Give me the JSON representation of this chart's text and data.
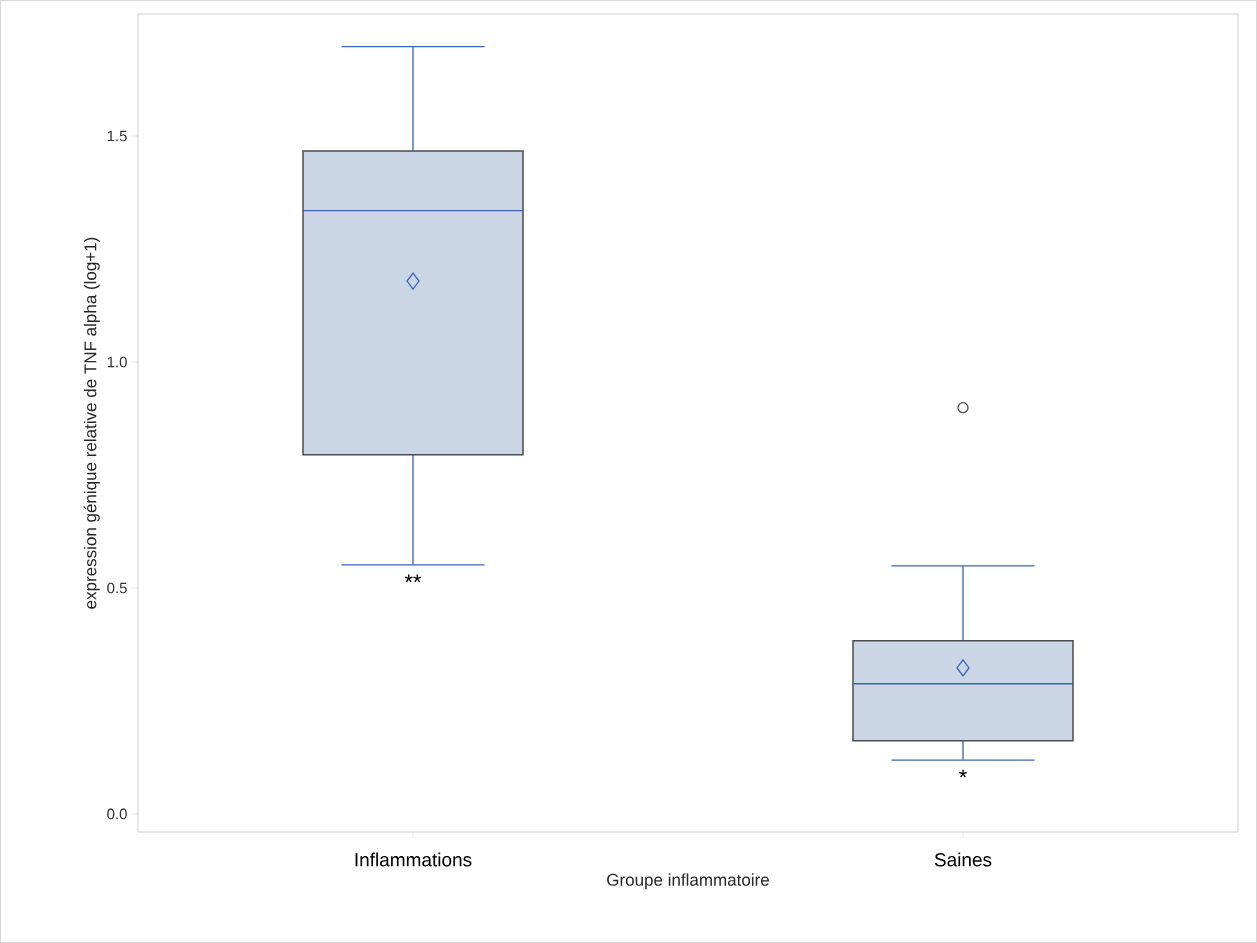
{
  "chart_data": {
    "type": "box",
    "categories": [
      "Inflammations",
      "Saines"
    ],
    "series": [
      {
        "color": "#cad5e5",
        "boxes": [
          {
            "low": 0.551,
            "q1": 0.795,
            "median": 1.335,
            "q3": 1.467,
            "high": 1.698,
            "mean": 1.179
          },
          {
            "low": 0.119,
            "q1": 0.162,
            "median": 0.288,
            "q3": 0.383,
            "high": 0.549,
            "mean": 0.323,
            "outliers": [
              0.899
            ]
          }
        ]
      }
    ],
    "xlabel": "Groupe inflammatoire",
    "ylabel": "expression génique relative de TNF alpha (log+1)",
    "ylim": [
      -0.04,
      1.77
    ],
    "yticks": [
      {
        "value": 0,
        "label": "0.0"
      },
      {
        "value": 0.5,
        "label": "0.5"
      },
      {
        "value": 1,
        "label": "1.0"
      },
      {
        "value": 1.5,
        "label": "1.5"
      }
    ],
    "grid": false,
    "annotations": [
      "**",
      "*"
    ]
  }
}
